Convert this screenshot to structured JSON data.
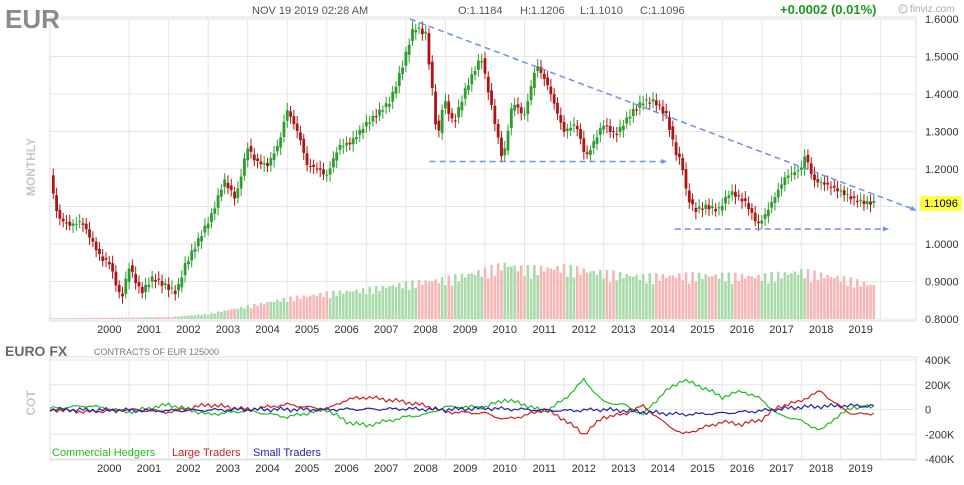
{
  "header": {
    "symbol": "EUR",
    "datetime": "NOV 19 2019 02:28 AM",
    "open": "O:1.1184",
    "high": "H:1.1206",
    "low": "L:1.1010",
    "close": "C:1.1096",
    "change": "+0.0002 (0.01%)",
    "brand": "finviz.com",
    "brand_icon": "finviz-logo-icon"
  },
  "colors": {
    "up": "#2e9e2e",
    "down": "#b01515",
    "vol_up": "#a9dba9",
    "vol_down": "#f7b6b6",
    "trendline": "#6f8ff0",
    "commercial": "#22bb22",
    "large": "#cc2222",
    "small": "#2222aa",
    "price_badge": "#ffff44",
    "change_green": "#1a9a1a"
  },
  "chart_data": [
    {
      "type": "candlestick",
      "timeframe_label": "MONTHLY",
      "x_tick_labels": [
        "2000",
        "2001",
        "2002",
        "2003",
        "2004",
        "2005",
        "2006",
        "2007",
        "2008",
        "2009",
        "2010",
        "2011",
        "2012",
        "2013",
        "2014",
        "2015",
        "2016",
        "2017",
        "2018",
        "2019"
      ],
      "y_tick_labels": [
        "1.6000",
        "1.5000",
        "1.4000",
        "1.3000",
        "1.2000",
        "1.1000",
        "1.0000",
        "0.9000",
        "0.8000"
      ],
      "ylim": [
        0.8,
        1.6
      ],
      "last_price": "1.1096",
      "close_path": [
        [
          1999.0,
          1.18
        ],
        [
          1999.2,
          1.07
        ],
        [
          1999.5,
          1.05
        ],
        [
          1999.8,
          1.06
        ],
        [
          2000.0,
          1.02
        ],
        [
          2000.3,
          0.96
        ],
        [
          2000.5,
          0.95
        ],
        [
          2000.8,
          0.85
        ],
        [
          2001.0,
          0.94
        ],
        [
          2001.3,
          0.87
        ],
        [
          2001.6,
          0.91
        ],
        [
          2001.9,
          0.89
        ],
        [
          2002.2,
          0.87
        ],
        [
          2002.4,
          0.94
        ],
        [
          2002.6,
          0.98
        ],
        [
          2002.9,
          1.04
        ],
        [
          2003.1,
          1.08
        ],
        [
          2003.4,
          1.17
        ],
        [
          2003.7,
          1.12
        ],
        [
          2003.99,
          1.26
        ],
        [
          2004.2,
          1.22
        ],
        [
          2004.5,
          1.21
        ],
        [
          2004.8,
          1.27
        ],
        [
          2004.99,
          1.36
        ],
        [
          2005.3,
          1.29
        ],
        [
          2005.5,
          1.21
        ],
        [
          2005.8,
          1.2
        ],
        [
          2005.99,
          1.18
        ],
        [
          2006.3,
          1.26
        ],
        [
          2006.6,
          1.27
        ],
        [
          2006.99,
          1.32
        ],
        [
          2007.3,
          1.35
        ],
        [
          2007.6,
          1.38
        ],
        [
          2007.9,
          1.47
        ],
        [
          2008.2,
          1.58
        ],
        [
          2008.5,
          1.56
        ],
        [
          2008.7,
          1.38
        ],
        [
          2008.8,
          1.27
        ],
        [
          2008.95,
          1.39
        ],
        [
          2009.2,
          1.32
        ],
        [
          2009.5,
          1.41
        ],
        [
          2009.9,
          1.5
        ],
        [
          2010.2,
          1.35
        ],
        [
          2010.45,
          1.22
        ],
        [
          2010.7,
          1.38
        ],
        [
          2010.99,
          1.34
        ],
        [
          2011.3,
          1.48
        ],
        [
          2011.6,
          1.42
        ],
        [
          2011.99,
          1.3
        ],
        [
          2012.3,
          1.32
        ],
        [
          2012.55,
          1.23
        ],
        [
          2012.99,
          1.32
        ],
        [
          2013.3,
          1.29
        ],
        [
          2013.7,
          1.35
        ],
        [
          2013.99,
          1.38
        ],
        [
          2014.3,
          1.38
        ],
        [
          2014.6,
          1.34
        ],
        [
          2014.8,
          1.25
        ],
        [
          2014.99,
          1.21
        ],
        [
          2015.1,
          1.13
        ],
        [
          2015.3,
          1.09
        ],
        [
          2015.6,
          1.1
        ],
        [
          2015.9,
          1.09
        ],
        [
          2016.2,
          1.14
        ],
        [
          2016.6,
          1.11
        ],
        [
          2016.9,
          1.05
        ],
        [
          2017.1,
          1.08
        ],
        [
          2017.4,
          1.14
        ],
        [
          2017.6,
          1.18
        ],
        [
          2017.99,
          1.2
        ],
        [
          2018.1,
          1.24
        ],
        [
          2018.3,
          1.17
        ],
        [
          2018.6,
          1.16
        ],
        [
          2018.99,
          1.14
        ],
        [
          2019.3,
          1.12
        ],
        [
          2019.6,
          1.11
        ],
        [
          2019.85,
          1.1096
        ]
      ],
      "volume_path": [
        [
          1999.0,
          0.01
        ],
        [
          2002.0,
          0.03
        ],
        [
          2003.0,
          0.08
        ],
        [
          2004.0,
          0.2
        ],
        [
          2005.0,
          0.32
        ],
        [
          2006.0,
          0.4
        ],
        [
          2007.0,
          0.46
        ],
        [
          2008.0,
          0.55
        ],
        [
          2009.0,
          0.62
        ],
        [
          2010.0,
          0.75
        ],
        [
          2010.5,
          0.85
        ],
        [
          2011.0,
          0.78
        ],
        [
          2012.0,
          0.8
        ],
        [
          2013.0,
          0.72
        ],
        [
          2014.0,
          0.66
        ],
        [
          2015.0,
          0.68
        ],
        [
          2016.0,
          0.68
        ],
        [
          2017.0,
          0.66
        ],
        [
          2018.0,
          0.74
        ],
        [
          2019.0,
          0.64
        ],
        [
          2019.85,
          0.52
        ]
      ],
      "trendlines": [
        {
          "from": [
            2008.1,
            1.6
          ],
          "to": [
            2020.9,
            1.09
          ],
          "arrow": true
        },
        {
          "from": [
            2008.6,
            1.22
          ],
          "to": [
            2014.6,
            1.22
          ],
          "arrow": true
        },
        {
          "from": [
            2014.8,
            1.04
          ],
          "to": [
            2020.2,
            1.04
          ],
          "arrow": true
        }
      ]
    },
    {
      "type": "line",
      "section_title": "EURO FX",
      "subtitle": "CONTRACTS OF EUR 125000",
      "axis_label": "COT",
      "y_tick_labels": [
        "400K",
        "200K",
        "0",
        "-200K",
        "-400K"
      ],
      "ylim": [
        -400000,
        400000
      ],
      "x_tick_labels": [
        "2000",
        "2001",
        "2002",
        "2003",
        "2004",
        "2005",
        "2006",
        "2007",
        "2008",
        "2009",
        "2010",
        "2011",
        "2012",
        "2013",
        "2014",
        "2015",
        "2016",
        "2017",
        "2018",
        "2019"
      ],
      "legend": [
        "Commercial Hedgers",
        "Large Traders",
        "Small Traders"
      ],
      "series": [
        {
          "name": "Commercial Hedgers",
          "points": [
            [
              1999.0,
              10000
            ],
            [
              2000.0,
              30000
            ],
            [
              2001.0,
              -20000
            ],
            [
              2002.0,
              40000
            ],
            [
              2003.0,
              -40000
            ],
            [
              2004.0,
              -10000
            ],
            [
              2005.0,
              -60000
            ],
            [
              2006.0,
              0
            ],
            [
              2006.5,
              -100000
            ],
            [
              2007.0,
              -130000
            ],
            [
              2008.0,
              -60000
            ],
            [
              2008.5,
              -40000
            ],
            [
              2009.0,
              20000
            ],
            [
              2010.0,
              20000
            ],
            [
              2010.5,
              80000
            ],
            [
              2011.0,
              40000
            ],
            [
              2011.5,
              -20000
            ],
            [
              2012.0,
              80000
            ],
            [
              2012.5,
              240000
            ],
            [
              2013.0,
              60000
            ],
            [
              2013.5,
              40000
            ],
            [
              2014.0,
              -40000
            ],
            [
              2014.5,
              130000
            ],
            [
              2015.0,
              240000
            ],
            [
              2015.5,
              180000
            ],
            [
              2016.0,
              100000
            ],
            [
              2016.5,
              150000
            ],
            [
              2017.0,
              80000
            ],
            [
              2017.4,
              -40000
            ],
            [
              2017.9,
              -80000
            ],
            [
              2018.5,
              -170000
            ],
            [
              2018.8,
              -80000
            ],
            [
              2019.3,
              20000
            ],
            [
              2019.85,
              20000
            ]
          ]
        },
        {
          "name": "Large Traders",
          "points": [
            [
              1999.0,
              0
            ],
            [
              2000.0,
              -20000
            ],
            [
              2001.0,
              0
            ],
            [
              2002.0,
              -20000
            ],
            [
              2003.0,
              40000
            ],
            [
              2004.0,
              0
            ],
            [
              2005.0,
              40000
            ],
            [
              2006.0,
              0
            ],
            [
              2006.5,
              80000
            ],
            [
              2007.0,
              100000
            ],
            [
              2008.0,
              60000
            ],
            [
              2008.5,
              30000
            ],
            [
              2009.0,
              -20000
            ],
            [
              2010.0,
              -30000
            ],
            [
              2010.5,
              -80000
            ],
            [
              2011.0,
              -50000
            ],
            [
              2011.5,
              0
            ],
            [
              2012.0,
              -80000
            ],
            [
              2012.5,
              -200000
            ],
            [
              2013.0,
              -60000
            ],
            [
              2013.5,
              -40000
            ],
            [
              2014.0,
              30000
            ],
            [
              2014.5,
              -100000
            ],
            [
              2015.0,
              -200000
            ],
            [
              2015.5,
              -150000
            ],
            [
              2016.0,
              -100000
            ],
            [
              2016.5,
              -120000
            ],
            [
              2017.0,
              -80000
            ],
            [
              2017.4,
              20000
            ],
            [
              2017.9,
              60000
            ],
            [
              2018.5,
              150000
            ],
            [
              2018.8,
              60000
            ],
            [
              2019.3,
              -40000
            ],
            [
              2019.85,
              -30000
            ]
          ]
        },
        {
          "name": "Small Traders",
          "points": [
            [
              1999.0,
              0
            ],
            [
              2002.0,
              -10000
            ],
            [
              2004.0,
              0
            ],
            [
              2006.0,
              0
            ],
            [
              2008.0,
              5000
            ],
            [
              2009.0,
              0
            ],
            [
              2010.0,
              10000
            ],
            [
              2012.0,
              -10000
            ],
            [
              2013.0,
              0
            ],
            [
              2014.0,
              -20000
            ],
            [
              2015.0,
              -40000
            ],
            [
              2016.0,
              -30000
            ],
            [
              2017.0,
              -10000
            ],
            [
              2018.0,
              20000
            ],
            [
              2019.0,
              30000
            ],
            [
              2019.85,
              30000
            ]
          ]
        }
      ]
    }
  ]
}
